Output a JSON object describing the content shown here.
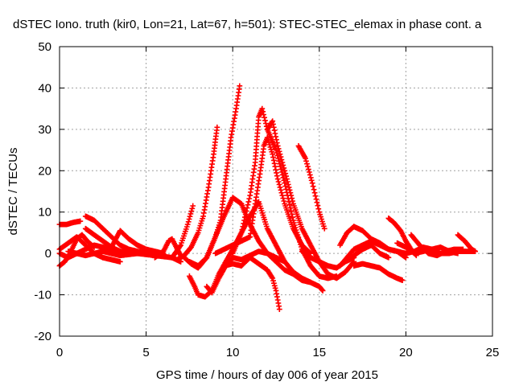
{
  "chart_data": {
    "type": "scatter",
    "title": "dSTEC Iono. truth (kir0, Lon=21, Lat=67, h=501): STEC-STEC_elemax in phase cont. a",
    "xlabel": "GPS time / hours of day 006 of year 2015",
    "ylabel": "dSTEC  / TECUs",
    "xlim": [
      0,
      25
    ],
    "ylim": [
      -20,
      50
    ],
    "xticks": [
      0,
      5,
      10,
      15,
      20,
      25
    ],
    "yticks": [
      -20,
      -10,
      0,
      10,
      20,
      30,
      40,
      50
    ],
    "xtick_labels": [
      "0",
      "5",
      "10",
      "15",
      "20",
      "25"
    ],
    "ytick_labels": [
      "-20",
      "-10",
      "0",
      "10",
      "20",
      "30",
      "40",
      "50"
    ],
    "grid": true,
    "marker": "+",
    "color": "#ff0000",
    "series": [
      {
        "points": [
          [
            0.0,
            7.0
          ],
          [
            0.4,
            7.0
          ],
          [
            0.8,
            7.5
          ],
          [
            1.2,
            7.8
          ]
        ]
      },
      {
        "points": [
          [
            0.0,
            -3.0
          ],
          [
            0.3,
            -2.0
          ],
          [
            0.6,
            0.0
          ],
          [
            1.0,
            3.5
          ],
          [
            1.3,
            4.5
          ],
          [
            1.6,
            3.0
          ],
          [
            2.0,
            1.5
          ]
        ]
      },
      {
        "points": [
          [
            0.0,
            1.0
          ],
          [
            0.5,
            2.5
          ],
          [
            1.0,
            4.0
          ],
          [
            1.5,
            2.0
          ],
          [
            2.0,
            0.0
          ],
          [
            2.5,
            -1.0
          ],
          [
            3.0,
            -1.5
          ],
          [
            3.5,
            -2.0
          ]
        ]
      },
      {
        "points": [
          [
            0.0,
            0.0
          ],
          [
            0.5,
            -1.0
          ],
          [
            1.0,
            0.0
          ],
          [
            1.5,
            1.0
          ],
          [
            2.0,
            2.0
          ],
          [
            2.5,
            1.5
          ],
          [
            3.0,
            1.0
          ],
          [
            3.5,
            0.5
          ],
          [
            4.0,
            0.0
          ]
        ]
      },
      {
        "points": [
          [
            1.5,
            9.0
          ],
          [
            2.0,
            8.0
          ],
          [
            2.5,
            6.0
          ],
          [
            3.0,
            4.0
          ],
          [
            3.5,
            2.0
          ],
          [
            4.0,
            1.0
          ],
          [
            4.5,
            0.5
          ],
          [
            5.0,
            0.0
          ],
          [
            5.5,
            0.0
          ],
          [
            6.0,
            -0.5
          ]
        ]
      },
      {
        "points": [
          [
            1.5,
            6.0
          ],
          [
            2.0,
            4.5
          ],
          [
            2.5,
            3.0
          ],
          [
            3.0,
            1.5
          ],
          [
            3.5,
            0.5
          ],
          [
            4.0,
            0.0
          ]
        ]
      },
      {
        "points": [
          [
            3.0,
            1.5
          ],
          [
            3.5,
            5.5
          ],
          [
            4.0,
            3.5
          ],
          [
            4.5,
            2.0
          ],
          [
            5.0,
            1.0
          ],
          [
            5.5,
            0.5
          ],
          [
            6.0,
            0.0
          ]
        ]
      },
      {
        "points": [
          [
            0.5,
            0.5
          ],
          [
            1.5,
            -0.5
          ],
          [
            2.5,
            0.5
          ],
          [
            3.5,
            -0.5
          ],
          [
            4.5,
            0.0
          ],
          [
            5.5,
            -0.5
          ],
          [
            6.5,
            -1.0
          ],
          [
            7.0,
            -2.0
          ]
        ]
      },
      {
        "points": [
          [
            5.5,
            -1.0
          ],
          [
            6.0,
            0.5
          ],
          [
            6.3,
            3.0
          ],
          [
            6.5,
            3.5
          ],
          [
            6.8,
            1.0
          ],
          [
            7.0,
            -0.5
          ]
        ]
      },
      {
        "points": [
          [
            6.5,
            -1.0
          ],
          [
            7.0,
            2.0
          ],
          [
            7.4,
            7.0
          ],
          [
            7.7,
            11.5
          ]
        ]
      },
      {
        "points": [
          [
            6.8,
            -1.5
          ],
          [
            7.2,
            -0.5
          ],
          [
            7.6,
            1.5
          ],
          [
            8.0,
            5.0
          ],
          [
            8.3,
            9.0
          ],
          [
            8.6,
            16.0
          ],
          [
            8.9,
            24.0
          ],
          [
            9.1,
            30.5
          ]
        ]
      },
      {
        "points": [
          [
            7.2,
            -1.0
          ],
          [
            7.6,
            -2.5
          ],
          [
            8.0,
            -3.5
          ],
          [
            8.5,
            -1.0
          ],
          [
            9.0,
            4.0
          ],
          [
            9.3,
            8.0
          ],
          [
            9.6,
            18.0
          ],
          [
            9.9,
            28.0
          ],
          [
            10.2,
            35.0
          ],
          [
            10.4,
            40.5
          ]
        ]
      },
      {
        "points": [
          [
            7.5,
            -2.0
          ],
          [
            8.0,
            -3.0
          ],
          [
            8.5,
            -1.0
          ],
          [
            9.0,
            4.0
          ],
          [
            9.5,
            9.0
          ],
          [
            10.0,
            13.5
          ],
          [
            10.5,
            12.0
          ],
          [
            11.0,
            7.0
          ],
          [
            11.5,
            3.0
          ],
          [
            12.0,
            0.0
          ],
          [
            12.5,
            -1.0
          ],
          [
            13.0,
            -2.0
          ]
        ]
      },
      {
        "points": [
          [
            7.5,
            -5.5
          ],
          [
            7.8,
            -8.0
          ],
          [
            8.0,
            -10.0
          ],
          [
            8.4,
            -10.5
          ],
          [
            8.8,
            -9.0
          ],
          [
            9.2,
            -5.0
          ],
          [
            9.6,
            -2.0
          ],
          [
            10.0,
            1.0
          ],
          [
            10.5,
            5.0
          ],
          [
            11.0,
            9.0
          ],
          [
            11.5,
            12.5
          ],
          [
            12.0,
            6.0
          ],
          [
            12.5,
            2.0
          ],
          [
            13.0,
            -2.0
          ],
          [
            13.5,
            -4.5
          ],
          [
            14.0,
            -6.0
          ],
          [
            14.5,
            -7.0
          ],
          [
            15.0,
            -8.0
          ],
          [
            15.2,
            -9.0
          ]
        ]
      },
      {
        "points": [
          [
            8.5,
            -8.0
          ],
          [
            8.8,
            -9.5
          ],
          [
            9.2,
            -6.0
          ],
          [
            9.6,
            -3.0
          ],
          [
            10.0,
            -1.0
          ],
          [
            10.5,
            -1.5
          ],
          [
            11.0,
            -0.5
          ],
          [
            11.5,
            0.5
          ],
          [
            12.0,
            0.0
          ],
          [
            12.5,
            -2.0
          ],
          [
            13.0,
            -4.0
          ],
          [
            13.5,
            -5.0
          ],
          [
            14.0,
            -6.5
          ],
          [
            14.5,
            -7.0
          ]
        ]
      },
      {
        "points": [
          [
            9.5,
            -3.0
          ],
          [
            10.0,
            -2.5
          ],
          [
            10.5,
            -3.0
          ],
          [
            11.0,
            -1.0
          ],
          [
            11.5,
            -2.5
          ],
          [
            12.0,
            -4.0
          ],
          [
            12.3,
            -6.0
          ],
          [
            12.5,
            -9.0
          ],
          [
            12.7,
            -13.5
          ]
        ]
      },
      {
        "points": [
          [
            9.0,
            0.0
          ],
          [
            9.5,
            1.0
          ],
          [
            10.0,
            2.0
          ],
          [
            10.5,
            3.0
          ],
          [
            11.0,
            4.0
          ],
          [
            11.3,
            12.0
          ],
          [
            11.6,
            20.0
          ],
          [
            11.8,
            26.0
          ],
          [
            12.0,
            28.0
          ],
          [
            12.3,
            24.0
          ],
          [
            12.6,
            18.0
          ],
          [
            13.0,
            12.0
          ],
          [
            13.5,
            6.0
          ],
          [
            14.0,
            2.0
          ],
          [
            14.5,
            0.0
          ]
        ]
      },
      {
        "points": [
          [
            10.0,
            0.0
          ],
          [
            10.5,
            5.0
          ],
          [
            11.0,
            14.0
          ],
          [
            11.3,
            22.0
          ],
          [
            11.5,
            33.0
          ],
          [
            11.7,
            35.0
          ],
          [
            12.0,
            30.0
          ],
          [
            12.5,
            25.0
          ],
          [
            13.0,
            17.0
          ],
          [
            13.5,
            8.0
          ],
          [
            14.0,
            1.0
          ],
          [
            14.5,
            -3.0
          ],
          [
            15.0,
            -5.5
          ],
          [
            15.5,
            -6.0
          ],
          [
            16.0,
            -5.5
          ]
        ]
      },
      {
        "points": [
          [
            12.0,
            30.0
          ],
          [
            12.3,
            32.0
          ],
          [
            12.6,
            26.0
          ],
          [
            13.0,
            20.0
          ],
          [
            13.5,
            12.0
          ],
          [
            14.0,
            6.0
          ],
          [
            14.5,
            2.0
          ],
          [
            15.0,
            -2.0
          ],
          [
            15.5,
            -5.0
          ],
          [
            16.0,
            -6.0
          ],
          [
            16.5,
            -4.5
          ],
          [
            17.0,
            -2.0
          ]
        ]
      },
      {
        "points": [
          [
            13.8,
            26.0
          ],
          [
            14.2,
            23.0
          ],
          [
            14.6,
            17.0
          ],
          [
            15.0,
            10.0
          ],
          [
            15.3,
            6.0
          ]
        ]
      },
      {
        "points": [
          [
            14.0,
            0.5
          ],
          [
            14.5,
            -1.0
          ],
          [
            15.0,
            -2.0
          ],
          [
            15.5,
            -3.0
          ],
          [
            16.0,
            -3.5
          ],
          [
            16.5,
            -2.0
          ],
          [
            17.0,
            -1.0
          ]
        ]
      },
      {
        "points": [
          [
            16.2,
            2.0
          ],
          [
            16.6,
            5.0
          ],
          [
            17.0,
            6.5
          ],
          [
            17.5,
            5.5
          ],
          [
            18.0,
            3.5
          ],
          [
            18.5,
            2.5
          ],
          [
            19.0,
            1.0
          ],
          [
            19.5,
            0.5
          ],
          [
            20.0,
            -1.0
          ]
        ]
      },
      {
        "points": [
          [
            16.2,
            -3.0
          ],
          [
            16.6,
            -1.0
          ],
          [
            17.0,
            1.0
          ],
          [
            17.5,
            2.0
          ],
          [
            18.0,
            3.0
          ],
          [
            18.5,
            2.0
          ],
          [
            19.0,
            1.0
          ],
          [
            19.5,
            0.5
          ],
          [
            20.0,
            0.0
          ],
          [
            20.5,
            0.5
          ],
          [
            21.0,
            1.5
          ],
          [
            21.5,
            1.0
          ],
          [
            22.0,
            0.0
          ],
          [
            22.5,
            0.0
          ],
          [
            23.0,
            0.5
          ],
          [
            23.5,
            0.5
          ],
          [
            24.0,
            0.5
          ]
        ]
      },
      {
        "points": [
          [
            17.0,
            -0.5
          ],
          [
            17.5,
            1.0
          ],
          [
            18.0,
            2.0
          ],
          [
            18.5,
            0.0
          ],
          [
            19.0,
            -1.0
          ]
        ]
      },
      {
        "points": [
          [
            17.0,
            -3.0
          ],
          [
            17.5,
            -2.5
          ],
          [
            18.0,
            -3.0
          ],
          [
            18.5,
            -3.5
          ],
          [
            19.0,
            -5.0
          ],
          [
            19.5,
            -6.0
          ],
          [
            19.8,
            -6.5
          ]
        ]
      },
      {
        "points": [
          [
            19.0,
            8.5
          ],
          [
            19.3,
            7.5
          ],
          [
            19.7,
            5.5
          ],
          [
            20.0,
            3.0
          ],
          [
            20.3,
            1.0
          ],
          [
            20.6,
            -0.5
          ]
        ]
      },
      {
        "points": [
          [
            19.5,
            2.5
          ],
          [
            20.0,
            1.5
          ],
          [
            20.5,
            0.0
          ],
          [
            21.0,
            0.5
          ],
          [
            21.5,
            1.0
          ],
          [
            22.0,
            1.5
          ],
          [
            22.5,
            0.5
          ],
          [
            23.0,
            0.0
          ]
        ]
      },
      {
        "points": [
          [
            20.3,
            4.5
          ],
          [
            20.8,
            2.0
          ],
          [
            21.3,
            0.0
          ],
          [
            21.8,
            -0.5
          ],
          [
            22.3,
            0.5
          ],
          [
            22.8,
            1.0
          ],
          [
            23.3,
            1.0
          ]
        ]
      },
      {
        "points": [
          [
            23.0,
            4.5
          ],
          [
            23.4,
            3.0
          ],
          [
            23.8,
            1.0
          ],
          [
            24.0,
            0.5
          ]
        ]
      }
    ]
  }
}
